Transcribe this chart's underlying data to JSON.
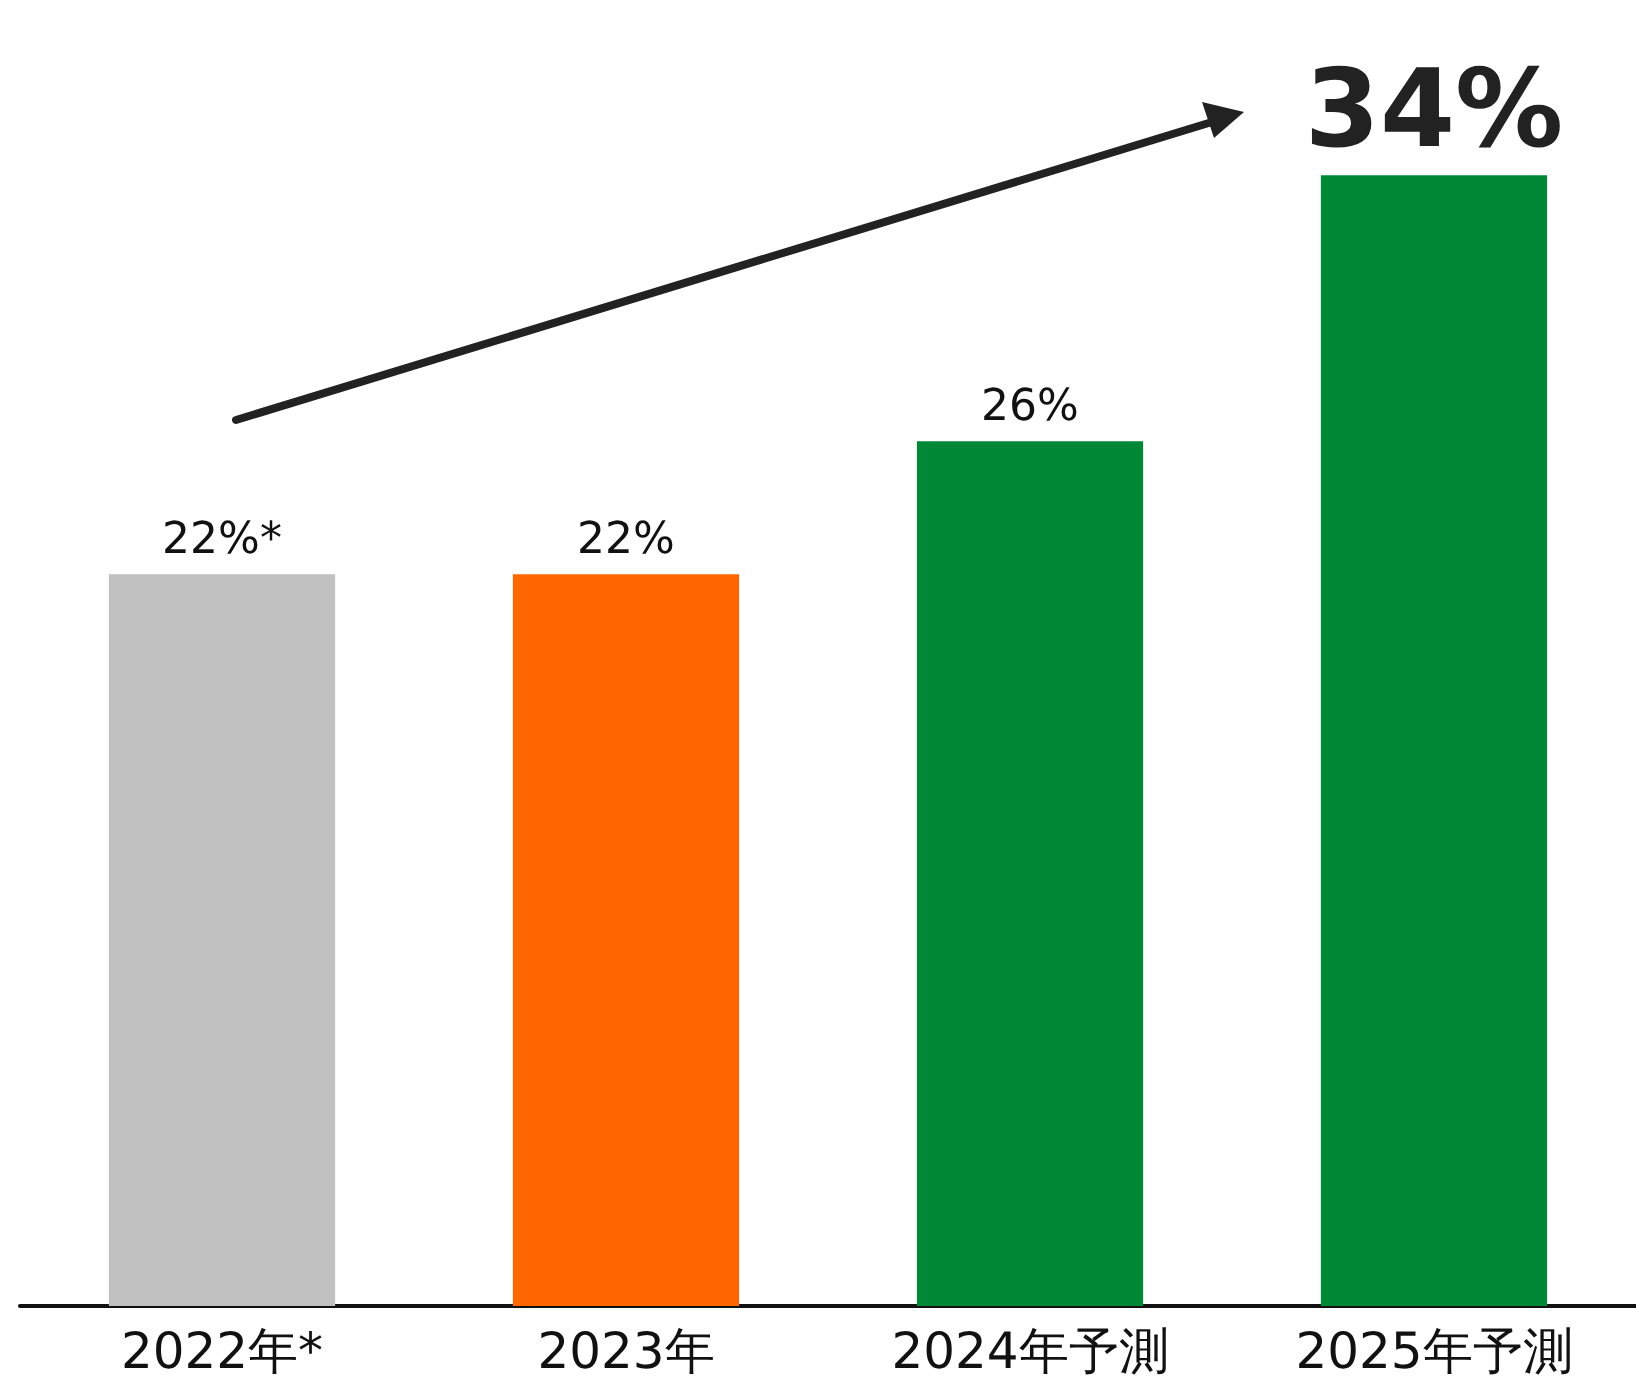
{
  "chart_data": {
    "type": "bar",
    "categories": [
      "2022年*",
      "2023年",
      "2024年予測",
      "2025年予測"
    ],
    "values": [
      22,
      22,
      26,
      34
    ],
    "colors": [
      "#c0c0c0",
      "#ff6600",
      "#008837",
      "#008837"
    ],
    "value_labels": [
      "22%*",
      "22%",
      "26%",
      "34%"
    ]
  }
}
